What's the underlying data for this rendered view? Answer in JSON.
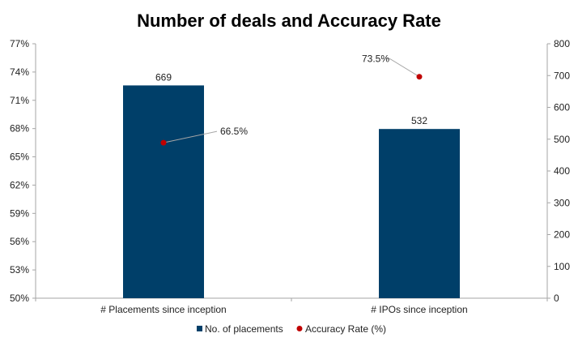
{
  "chart_data": {
    "type": "bar",
    "title": "Number of deals and Accuracy Rate",
    "categories": [
      "# Placements since inception",
      "# IPOs since inception"
    ],
    "series": [
      {
        "name": "No. of placements",
        "kind": "bar",
        "axis": "right",
        "values": [
          669,
          532
        ],
        "labels": [
          "669",
          "532"
        ],
        "color": "#003f69"
      },
      {
        "name": "Accuracy Rate (%)",
        "kind": "scatter",
        "axis": "left",
        "values": [
          66.5,
          73.5
        ],
        "labels": [
          "66.5%",
          "73.5%"
        ],
        "color": "#c00000"
      }
    ],
    "y_left": {
      "min": 50,
      "max": 77,
      "ticks": [
        "50%",
        "53%",
        "56%",
        "59%",
        "62%",
        "65%",
        "68%",
        "71%",
        "74%",
        "77%"
      ]
    },
    "y_right": {
      "min": 0,
      "max": 800,
      "ticks": [
        "0",
        "100",
        "200",
        "300",
        "400",
        "500",
        "600",
        "700",
        "800"
      ]
    },
    "legend": {
      "placement": "bottom"
    },
    "grid": false
  }
}
